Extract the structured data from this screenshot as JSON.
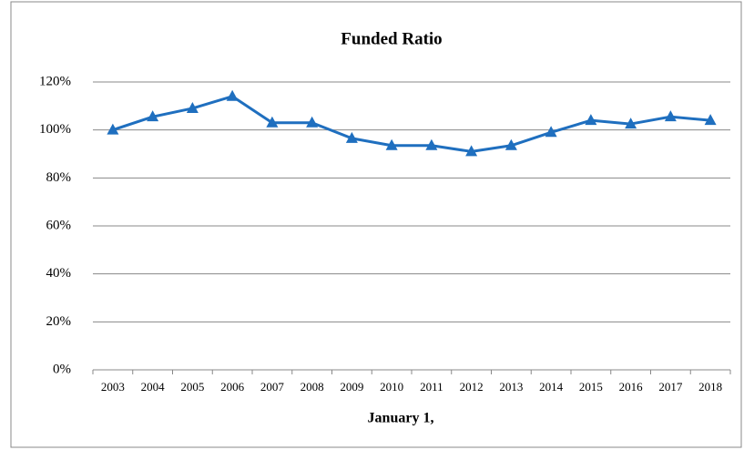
{
  "chart_data": {
    "type": "line",
    "title": "Funded Ratio",
    "x_label": "January 1,",
    "categories": [
      "2003",
      "2004",
      "2005",
      "2006",
      "2007",
      "2008",
      "2009",
      "2010",
      "2011",
      "2012",
      "2013",
      "2014",
      "2015",
      "2016",
      "2017",
      "2018"
    ],
    "series": [
      {
        "name": "Funded Ratio",
        "color": "#1f6fbf",
        "values": [
          100,
          105.5,
          109,
          114,
          103,
          103,
          96.5,
          93.5,
          93.5,
          91,
          93.5,
          99,
          104,
          102.5,
          105.5,
          104
        ]
      }
    ],
    "ylim": [
      0,
      120
    ],
    "yticks": [
      {
        "value": 0,
        "label": "0%"
      },
      {
        "value": 20,
        "label": "20%"
      },
      {
        "value": 40,
        "label": "40%"
      },
      {
        "value": 60,
        "label": "60%"
      },
      {
        "value": 80,
        "label": "80%"
      },
      {
        "value": 100,
        "label": "100%"
      },
      {
        "value": 120,
        "label": "120%"
      }
    ],
    "grid": true,
    "marker": "triangle"
  }
}
